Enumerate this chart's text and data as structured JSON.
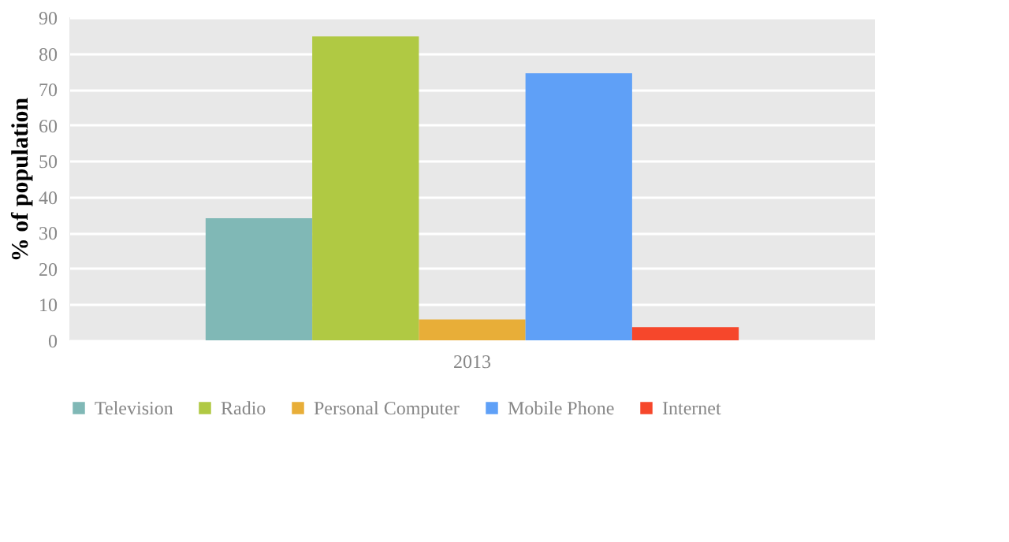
{
  "chart_data": {
    "type": "bar",
    "ylabel": "% of population",
    "categories": [
      "2013"
    ],
    "series": [
      {
        "name": "Television",
        "color": "#80b8b6",
        "values": [
          34.0
        ]
      },
      {
        "name": "Radio",
        "color": "#b0c943",
        "values": [
          84.7
        ]
      },
      {
        "name": "Personal Computer",
        "color": "#e8ae38",
        "values": [
          5.8
        ]
      },
      {
        "name": "Mobile Phone",
        "color": "#5fa0f7",
        "values": [
          74.4
        ]
      },
      {
        "name": "Internet",
        "color": "#f6472b",
        "values": [
          3.7
        ]
      }
    ],
    "ylim": [
      0,
      90
    ],
    "yticks": [
      0,
      10,
      20,
      30,
      40,
      50,
      60,
      70,
      80,
      90
    ],
    "grid": "y",
    "legend": "bottom"
  }
}
